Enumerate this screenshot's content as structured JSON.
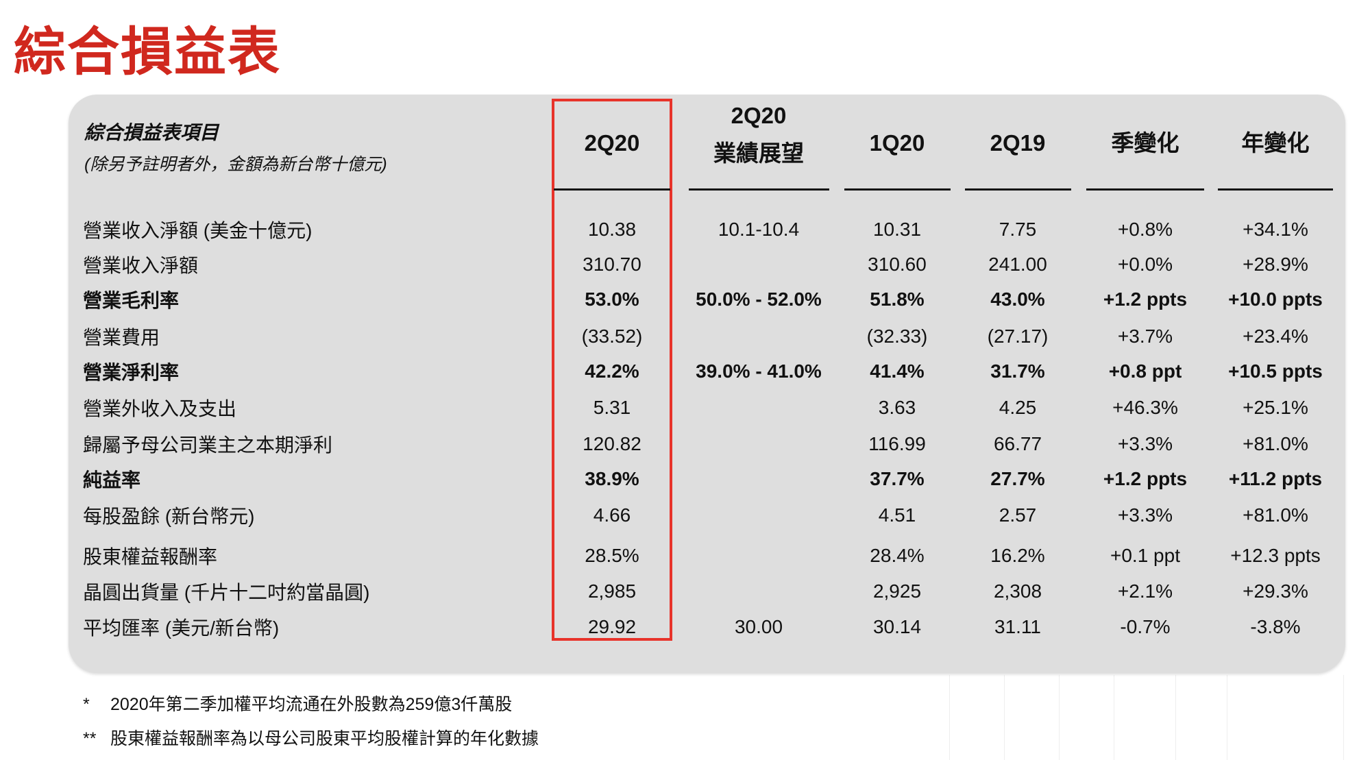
{
  "title": "綜合損益表",
  "header": {
    "item_title": "綜合損益表項目",
    "item_note": "(除另予註明者外，金額為新台幣十億元)",
    "columns": [
      {
        "line1": "2Q20",
        "line2": ""
      },
      {
        "line1": "2Q20",
        "line2": "業績展望"
      },
      {
        "line1": "1Q20",
        "line2": ""
      },
      {
        "line1": "2Q19",
        "line2": ""
      },
      {
        "line1": "季變化",
        "line2": ""
      },
      {
        "line1": "年變化",
        "line2": ""
      }
    ]
  },
  "rows": [
    {
      "label": "營業收入淨額 (美金十億元)",
      "bold": false,
      "values": [
        "10.38",
        "10.1-10.4",
        "10.31",
        "7.75",
        "+0.8%",
        "+34.1%"
      ]
    },
    {
      "label": "營業收入淨額",
      "bold": false,
      "values": [
        "310.70",
        "",
        "310.60",
        "241.00",
        "+0.0%",
        "+28.9%"
      ]
    },
    {
      "label": "營業毛利率",
      "bold": true,
      "values": [
        "53.0%",
        "50.0% - 52.0%",
        "51.8%",
        "43.0%",
        "+1.2 ppts",
        "+10.0 ppts"
      ]
    },
    {
      "label": "營業費用",
      "bold": false,
      "values": [
        "(33.52)",
        "",
        "(32.33)",
        "(27.17)",
        "+3.7%",
        "+23.4%"
      ]
    },
    {
      "label": "營業淨利率",
      "bold": true,
      "values": [
        "42.2%",
        "39.0% - 41.0%",
        "41.4%",
        "31.7%",
        "+0.8 ppt",
        "+10.5 ppts"
      ]
    },
    {
      "label": "營業外收入及支出",
      "bold": false,
      "values": [
        "5.31",
        "",
        "3.63",
        "4.25",
        "+46.3%",
        "+25.1%"
      ]
    },
    {
      "label": "歸屬予母公司業主之本期淨利",
      "bold": false,
      "values": [
        "120.82",
        "",
        "116.99",
        "66.77",
        "+3.3%",
        "+81.0%"
      ]
    },
    {
      "label": "純益率",
      "bold": true,
      "values": [
        "38.9%",
        "",
        "37.7%",
        "27.7%",
        "+1.2 ppts",
        "+11.2 ppts"
      ]
    },
    {
      "label": "每股盈餘 (新台幣元)",
      "bold": false,
      "values": [
        "4.66",
        "",
        "4.51",
        "2.57",
        "+3.3%",
        "+81.0%"
      ]
    },
    {
      "label": "股東權益報酬率",
      "bold": false,
      "values": [
        "28.5%",
        "",
        "28.4%",
        "16.2%",
        "+0.1 ppt",
        "+12.3 ppts"
      ]
    },
    {
      "label": "晶圓出貨量 (千片十二吋約當晶圓)",
      "bold": false,
      "values": [
        "2,985",
        "",
        "2,925",
        "2,308",
        "+2.1%",
        "+29.3%"
      ]
    },
    {
      "label": "平均匯率 (美元/新台幣)",
      "bold": false,
      "values": [
        "29.92",
        "30.00",
        "30.14",
        "31.11",
        "-0.7%",
        "-3.8%"
      ]
    }
  ],
  "footnotes": [
    {
      "mark": "*",
      "text": "2020年第二季加權平均流通在外股數為259億3仟萬股"
    },
    {
      "mark": "**",
      "text": "股東權益報酬率為以母公司股東平均股權計算的年化數據"
    }
  ],
  "colors": {
    "title": "#d0281e",
    "highlight": "#e8332a",
    "panel": "#dedede"
  }
}
